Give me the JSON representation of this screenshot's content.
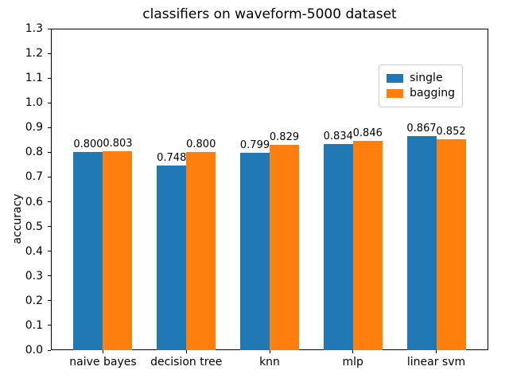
{
  "chart_data": {
    "type": "bar",
    "title": "classifiers on waveform-5000 dataset",
    "xlabel": "",
    "ylabel": "accuracy",
    "categories": [
      "naive bayes",
      "decision tree",
      "knn",
      "mlp",
      "linear svm"
    ],
    "series": [
      {
        "name": "single",
        "color": "#1f77b4",
        "values": [
          0.8,
          0.748,
          0.799,
          0.834,
          0.867
        ],
        "labels": [
          "0.800",
          "0.748",
          "0.799",
          "0.834",
          "0.867"
        ]
      },
      {
        "name": "bagging",
        "color": "#ff7f0e",
        "values": [
          0.803,
          0.8,
          0.829,
          0.846,
          0.852
        ],
        "labels": [
          "0.803",
          "0.800",
          "0.829",
          "0.846",
          "0.852"
        ]
      }
    ],
    "ylim": [
      0.0,
      1.3
    ],
    "ytick_labels": [
      "0.0",
      "0.1",
      "0.2",
      "0.3",
      "0.4",
      "0.5",
      "0.6",
      "0.7",
      "0.8",
      "0.9",
      "1.0",
      "1.1",
      "1.2",
      "1.3"
    ],
    "grid": false,
    "legend": {
      "position": "upper right",
      "entries": [
        "single",
        "bagging"
      ]
    }
  }
}
